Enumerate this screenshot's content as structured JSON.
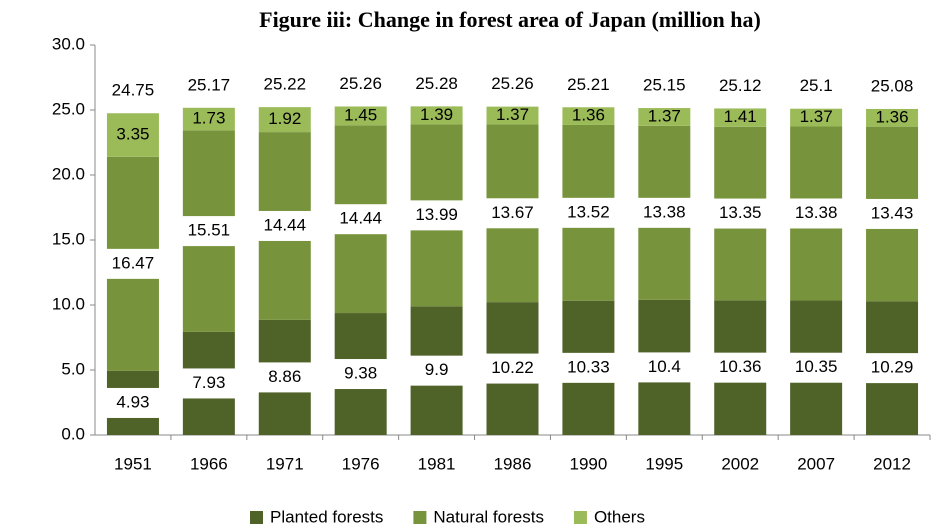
{
  "chart_data": {
    "type": "stacked_bar",
    "title": "Figure iii: Change in forest area of Japan (million ha)",
    "categories": [
      "1951",
      "1966",
      "1971",
      "1976",
      "1981",
      "1986",
      "1990",
      "1995",
      "2002",
      "2007",
      "2012"
    ],
    "series": [
      {
        "name": "Planted forests",
        "color": "#4f6228",
        "values": [
          4.93,
          7.93,
          8.86,
          9.38,
          9.9,
          10.22,
          10.33,
          10.4,
          10.36,
          10.35,
          10.29
        ]
      },
      {
        "name": "Natural forests",
        "color": "#77933c",
        "values": [
          16.47,
          15.51,
          14.44,
          14.44,
          13.99,
          13.67,
          13.52,
          13.38,
          13.35,
          13.38,
          13.43
        ]
      },
      {
        "name": "Others",
        "color": "#9bbb59",
        "values": [
          3.35,
          1.73,
          1.92,
          1.45,
          1.39,
          1.37,
          1.36,
          1.37,
          1.41,
          1.37,
          1.36
        ]
      }
    ],
    "totals": [
      24.75,
      25.17,
      25.22,
      25.26,
      25.28,
      25.26,
      25.21,
      25.15,
      25.12,
      25.1,
      25.08
    ],
    "ylim": [
      0,
      30
    ],
    "yticks": [
      {
        "value": 0,
        "label": "0.0"
      },
      {
        "value": 5,
        "label": "5.0"
      },
      {
        "value": 10,
        "label": "10.0"
      },
      {
        "value": 15,
        "label": "15.0"
      },
      {
        "value": 20,
        "label": "20.0"
      },
      {
        "value": 25,
        "label": "25.0"
      },
      {
        "value": 30,
        "label": "30.0"
      }
    ],
    "legend": "bottom"
  }
}
